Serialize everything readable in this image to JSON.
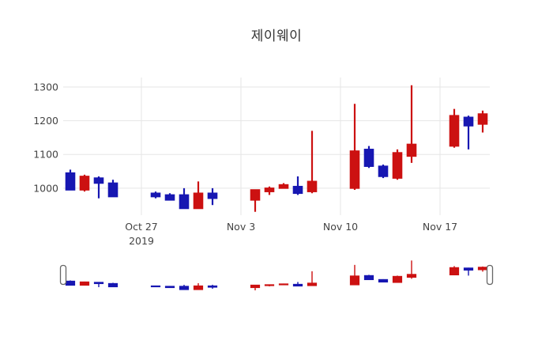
{
  "title": "제이웨이",
  "axes": {
    "y_ticks": [
      1000,
      1100,
      1200,
      1300
    ],
    "x_ticks": [
      {
        "label": "Oct 27",
        "sublabel": "2019",
        "date": "2019-10-27"
      },
      {
        "label": "Nov 3",
        "sublabel": "",
        "date": "2019-11-03"
      },
      {
        "label": "Nov 10",
        "sublabel": "",
        "date": "2019-11-10"
      },
      {
        "label": "Nov 17",
        "sublabel": "",
        "date": "2019-11-17"
      }
    ]
  },
  "colors": {
    "increasing": "#cc1111",
    "decreasing": "#1717b2",
    "grid": "#e6e6e6",
    "background": "#ffffff",
    "tick_text": "#444444",
    "title_text": "#333333",
    "slider_handle_fill": "#ffffff",
    "slider_handle_stroke": "#666666"
  },
  "chart_data": {
    "type": "candlestick",
    "title": "제이웨이",
    "xlabel": "",
    "ylabel": "",
    "y_range": [
      920,
      1328
    ],
    "grid": true,
    "legend": false,
    "rangeslider": true,
    "x_tick_labels": [
      "Oct 27 2019",
      "Nov 3",
      "Nov 10",
      "Nov 17"
    ],
    "y_tick_labels": [
      "1000",
      "1100",
      "1200",
      "1300"
    ],
    "dates": [
      "2019-10-22",
      "2019-10-23",
      "2019-10-24",
      "2019-10-25",
      "2019-10-28",
      "2019-10-29",
      "2019-10-30",
      "2019-10-31",
      "2019-11-01",
      "2019-11-04",
      "2019-11-05",
      "2019-11-06",
      "2019-11-07",
      "2019-11-08",
      "2019-11-11",
      "2019-11-12",
      "2019-11-13",
      "2019-11-14",
      "2019-11-15",
      "2019-11-18",
      "2019-11-19",
      "2019-11-20"
    ],
    "open": [
      1045,
      995,
      1030,
      1015,
      985,
      980,
      980,
      940,
      985,
      965,
      990,
      1000,
      1005,
      990,
      1000,
      1115,
      1065,
      1030,
      1095,
      1125,
      1210,
      1190
    ],
    "high": [
      1055,
      1040,
      1035,
      1025,
      990,
      985,
      1000,
      1020,
      1000,
      995,
      1005,
      1015,
      1035,
      1170,
      1250,
      1125,
      1070,
      1115,
      1305,
      1235,
      1215,
      1230
    ],
    "low": [
      995,
      990,
      970,
      975,
      970,
      965,
      940,
      940,
      950,
      930,
      980,
      1000,
      980,
      985,
      995,
      1060,
      1030,
      1025,
      1075,
      1120,
      1115,
      1165
    ],
    "close": [
      995,
      1035,
      1015,
      975,
      975,
      965,
      940,
      985,
      970,
      995,
      1000,
      1010,
      985,
      1020,
      1110,
      1065,
      1035,
      1105,
      1130,
      1215,
      1185,
      1220
    ]
  }
}
